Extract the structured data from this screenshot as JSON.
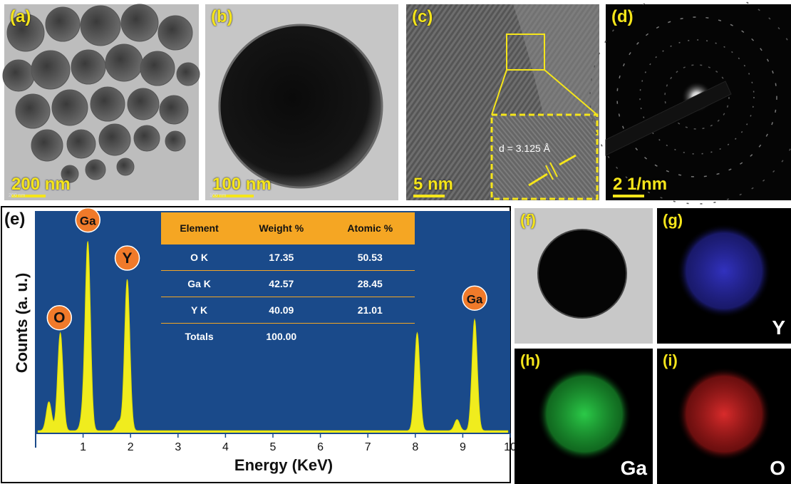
{
  "panels": {
    "a": {
      "label": "(a)",
      "scale": "200 nm",
      "tiny": "200 nm"
    },
    "b": {
      "label": "(b)",
      "scale": "100 nm",
      "tiny": "100 nm"
    },
    "c": {
      "label": "(c)",
      "scale": "5 nm",
      "d_spacing": "d = 3.125 Å"
    },
    "d": {
      "label": "(d)",
      "scale": "2 1/nm"
    },
    "f": {
      "label": "(f)"
    },
    "g": {
      "label": "(g)",
      "element": "Y",
      "color": "#3a3ae0"
    },
    "h": {
      "label": "(h)",
      "element": "Ga",
      "color": "#22c840"
    },
    "i": {
      "label": "(i)",
      "element": "O",
      "color": "#e02020"
    }
  },
  "eds": {
    "label": "(e)",
    "table": {
      "headers": [
        "Element",
        "Weight %",
        "Atomic %"
      ],
      "rows": [
        [
          "O K",
          "17.35",
          "50.53"
        ],
        [
          "Ga K",
          "42.57",
          "28.45"
        ],
        [
          "Y K",
          "40.09",
          "21.01"
        ],
        [
          "Totals",
          "100.00",
          ""
        ]
      ]
    }
  },
  "chart_data": {
    "type": "line",
    "xlabel": "Energy (KeV)",
    "ylabel": "Counts (a. u.)",
    "xlim": [
      0,
      10
    ],
    "ylim": [
      0,
      1
    ],
    "x_ticks": [
      "1",
      "2",
      "3",
      "4",
      "5",
      "6",
      "7",
      "8",
      "9",
      "10"
    ],
    "background_color": "#1a4a8a",
    "fill_color": "#f0ec1e",
    "peaks": [
      {
        "x": 0.28,
        "y": 0.13
      },
      {
        "x": 0.52,
        "y": 0.44
      },
      {
        "x": 1.0,
        "y": 0.06
      },
      {
        "x": 1.1,
        "y": 0.84
      },
      {
        "x": 1.75,
        "y": 0.04
      },
      {
        "x": 1.93,
        "y": 0.68
      },
      {
        "x": 8.04,
        "y": 0.44
      },
      {
        "x": 8.88,
        "y": 0.05
      },
      {
        "x": 9.25,
        "y": 0.5
      }
    ],
    "annotations": [
      {
        "text": "O",
        "x": 0.5
      },
      {
        "text": "Ga",
        "x": 1.1
      },
      {
        "text": "Y",
        "x": 1.93
      },
      {
        "text": "Ga",
        "x": 9.25
      }
    ]
  }
}
